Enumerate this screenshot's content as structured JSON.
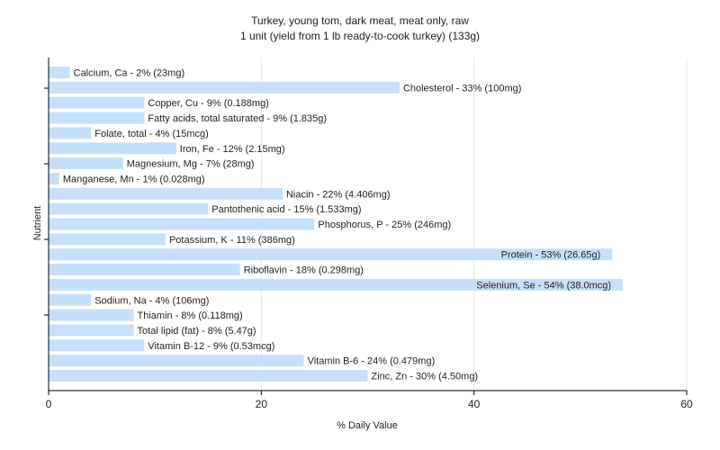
{
  "chart_data": {
    "type": "bar",
    "orientation": "horizontal",
    "title": "Turkey, young tom, dark meat, meat only, raw",
    "subtitle": "1 unit (yield from 1 lb ready-to-cook turkey) (133g)",
    "xlabel": "% Daily Value",
    "ylabel": "Nutrient",
    "xlim": [
      0,
      60
    ],
    "xticks": [
      0,
      20,
      40,
      60
    ],
    "grid": true,
    "bar_color": "#c6e0fb",
    "categories": [
      "Calcium, Ca",
      "Cholesterol",
      "Copper, Cu",
      "Fatty acids, total saturated",
      "Folate, total",
      "Iron, Fe",
      "Magnesium, Mg",
      "Manganese, Mn",
      "Niacin",
      "Pantothenic acid",
      "Phosphorus, P",
      "Potassium, K",
      "Protein",
      "Riboflavin",
      "Selenium, Se",
      "Sodium, Na",
      "Thiamin",
      "Total lipid (fat)",
      "Vitamin B-12",
      "Vitamin B-6",
      "Zinc, Zn"
    ],
    "values": [
      2,
      33,
      9,
      9,
      4,
      12,
      7,
      1,
      22,
      15,
      25,
      11,
      53,
      18,
      54,
      4,
      8,
      8,
      9,
      24,
      30
    ],
    "labels": [
      "Calcium, Ca - 2% (23mg)",
      "Cholesterol - 33% (100mg)",
      "Copper, Cu - 9% (0.188mg)",
      "Fatty acids, total saturated - 9% (1.835g)",
      "Folate, total - 4% (15mcg)",
      "Iron, Fe - 12% (2.15mg)",
      "Magnesium, Mg - 7% (28mg)",
      "Manganese, Mn - 1% (0.028mg)",
      "Niacin - 22% (4.406mg)",
      "Pantothenic acid - 15% (1.533mg)",
      "Phosphorus, P - 25% (246mg)",
      "Potassium, K - 11% (386mg)",
      "Protein - 53% (26.65g)",
      "Riboflavin - 18% (0.298mg)",
      "Selenium, Se - 54% (38.0mcg)",
      "Sodium, Na - 4% (106mg)",
      "Thiamin - 8% (0.118mg)",
      "Total lipid (fat) - 8% (5.47g)",
      "Vitamin B-12 - 9% (0.53mcg)",
      "Vitamin B-6 - 24% (0.479mg)",
      "Zinc, Zn - 30% (4.50mg)"
    ]
  }
}
